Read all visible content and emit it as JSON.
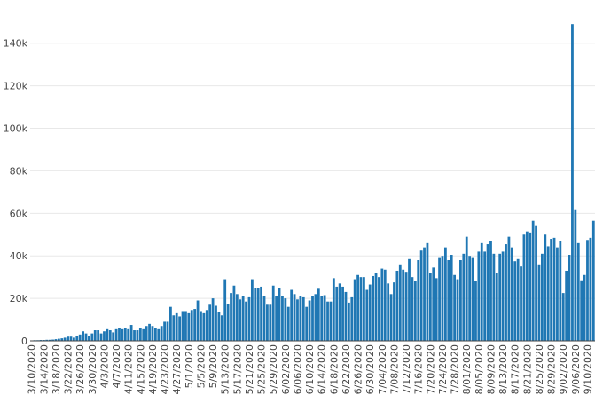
{
  "chart_data": {
    "type": "bar",
    "title": "",
    "xlabel": "",
    "ylabel": "",
    "bar_color": "#1f77b4",
    "grid": true,
    "ylim": [
      0,
      152000
    ],
    "y_ticks": [
      {
        "value": 0,
        "label": "0"
      },
      {
        "value": 20000,
        "label": "20k"
      },
      {
        "value": 40000,
        "label": "40k"
      },
      {
        "value": 60000,
        "label": "60k"
      },
      {
        "value": 80000,
        "label": "80k"
      },
      {
        "value": 100000,
        "label": "100k"
      },
      {
        "value": 120000,
        "label": "120k"
      },
      {
        "value": 140000,
        "label": "140k"
      }
    ],
    "x_tick_labels": [
      "3/10/2020",
      "3/14/2020",
      "3/18/2020",
      "3/22/2020",
      "3/26/2020",
      "3/30/2020",
      "4/3/2020",
      "4/7/2020",
      "4/11/2020",
      "4/15/2020",
      "4/19/2020",
      "4/23/2020",
      "4/27/2020",
      "5/1/2020",
      "5/5/2020",
      "5/9/2020",
      "5/13/2020",
      "5/17/2020",
      "5/21/2020",
      "5/25/2020",
      "5/29/2020",
      "6/02/2020",
      "6/06/2020",
      "6/10/2020",
      "6/14/2020",
      "6/18/2020",
      "6/22/2020",
      "6/26/2020",
      "6/30/2020",
      "7/04/2020",
      "7/08/2020",
      "7/12/2020",
      "7/16/2020",
      "7/20/2020",
      "7/24/2020",
      "7/28/2020",
      "8/01/2020",
      "8/05/2020",
      "8/09/2020",
      "8/13/2020",
      "8/17/2020",
      "8/21/2020",
      "8/25/2020",
      "8/29/2020",
      "9/02/2020",
      "9/06/2020",
      "9/10/2020"
    ],
    "values": [
      200,
      300,
      300,
      400,
      400,
      500,
      500,
      600,
      800,
      1000,
      1200,
      1500,
      2000,
      2000,
      1500,
      2500,
      3000,
      4500,
      3500,
      2500,
      3500,
      5000,
      5000,
      3500,
      4500,
      5500,
      5000,
      4000,
      5500,
      6000,
      5500,
      6000,
      5500,
      7500,
      5000,
      5000,
      6000,
      5500,
      7000,
      8000,
      7000,
      6000,
      5500,
      7000,
      9000,
      9000,
      16000,
      12000,
      13000,
      11500,
      14000,
      14000,
      13000,
      14500,
      15000,
      19000,
      14000,
      13000,
      14500,
      17000,
      20000,
      16500,
      13500,
      12000,
      29000,
      17500,
      22500,
      26000,
      22000,
      19500,
      21000,
      18500,
      20500,
      29000,
      25000,
      25000,
      25500,
      21000,
      17000,
      17000,
      26000,
      21000,
      25000,
      21000,
      20000,
      16000,
      24000,
      22000,
      19500,
      21000,
      20500,
      16000,
      19000,
      21000,
      22000,
      24500,
      21000,
      21500,
      18500,
      18500,
      29500,
      25500,
      27000,
      25500,
      23000,
      18000,
      20500,
      29000,
      31000,
      30000,
      30000,
      24000,
      26500,
      30500,
      32000,
      30000,
      34000,
      33500,
      27000,
      22000,
      27500,
      33000,
      36000,
      33500,
      32500,
      38500,
      30000,
      28000,
      38000,
      42500,
      44000,
      46000,
      32000,
      34500,
      29500,
      39000,
      40000,
      44000,
      38000,
      40500,
      31000,
      29000,
      38000,
      41000,
      49000,
      40000,
      39000,
      28000,
      42000,
      46000,
      42000,
      45500,
      47000,
      41000,
      32000,
      41000,
      42000,
      45500,
      49000,
      44000,
      37500,
      38500,
      35000,
      50000,
      51500,
      51000,
      56500,
      54000,
      36000,
      41000,
      50000,
      44500,
      48000,
      48500,
      44000,
      47000,
      22500,
      33000,
      40500,
      149000,
      61500,
      46000,
      28500,
      31000,
      47500,
      48500,
      56500
    ]
  }
}
